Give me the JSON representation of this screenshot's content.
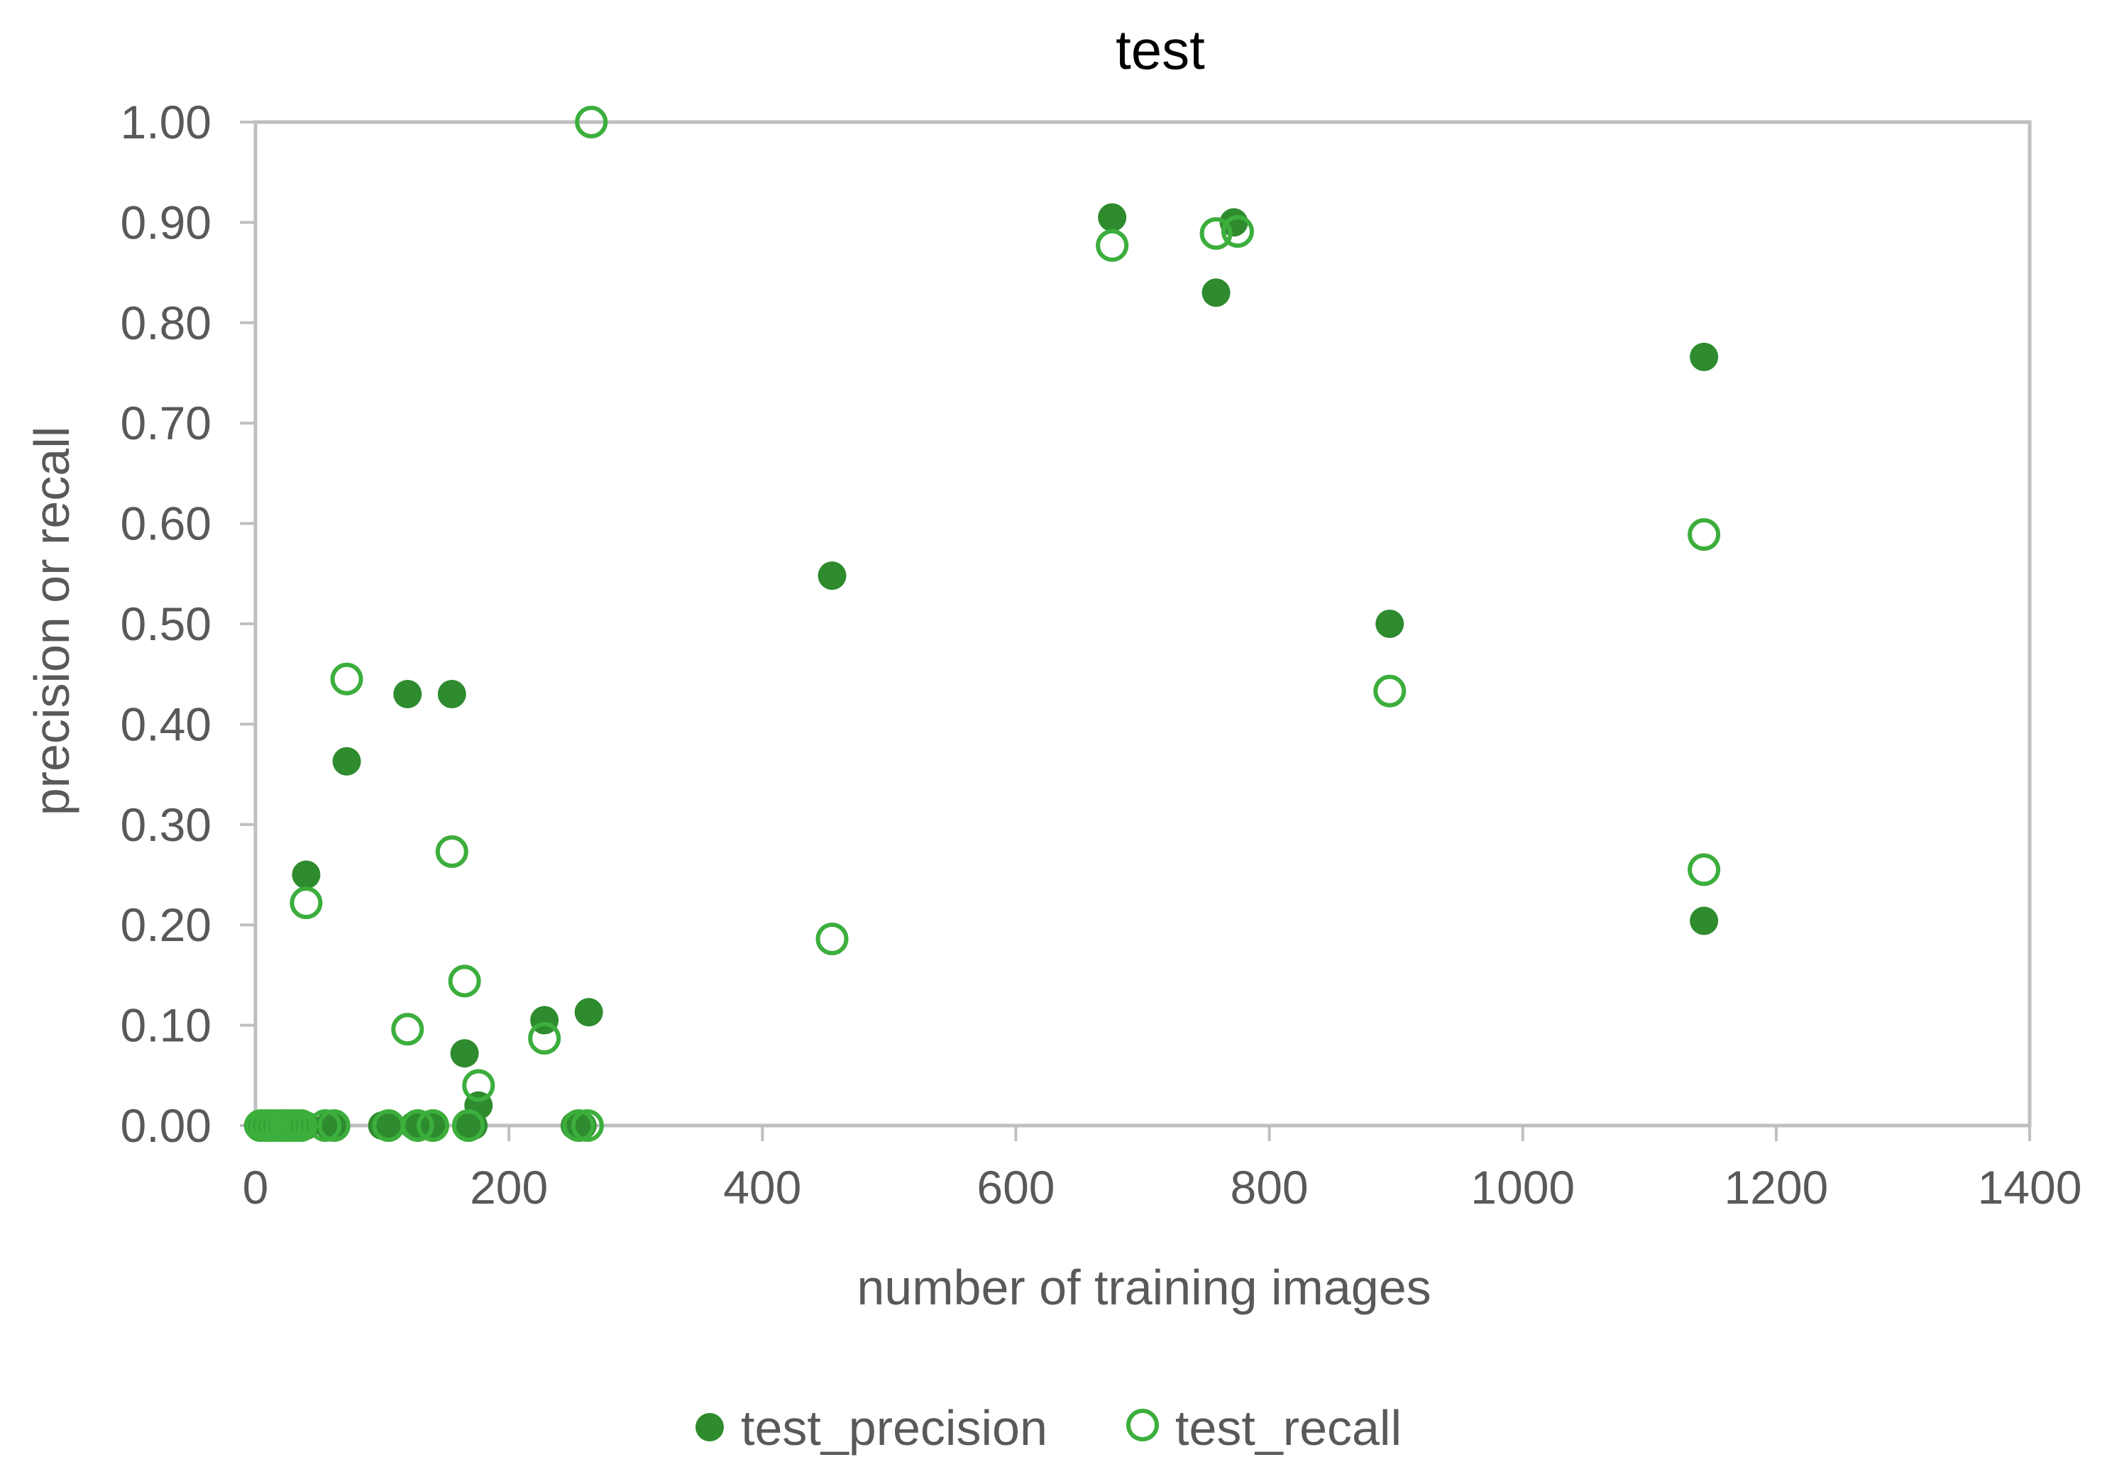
{
  "chart_data": {
    "type": "scatter",
    "title": "test",
    "xlabel": "number of training images",
    "ylabel": "precision or  recall",
    "xlim": [
      0,
      1400
    ],
    "ylim": [
      0,
      1.0
    ],
    "xticks": [
      "0",
      "200",
      "400",
      "600",
      "800",
      "1000",
      "1200",
      "1400"
    ],
    "yticks": [
      "0.00",
      "0.10",
      "0.20",
      "0.30",
      "0.40",
      "0.50",
      "0.60",
      "0.70",
      "0.80",
      "0.90",
      "1.00"
    ],
    "grid": false,
    "legend_position": "bottom",
    "series": [
      {
        "name": "test_precision",
        "marker": "filled-circle",
        "color": "#2e8b2e",
        "points": [
          [
            2,
            0
          ],
          [
            6,
            0
          ],
          [
            10,
            0
          ],
          [
            14,
            0
          ],
          [
            18,
            0
          ],
          [
            22,
            0
          ],
          [
            26,
            0
          ],
          [
            30,
            0
          ],
          [
            36,
            0
          ],
          [
            40,
            0
          ],
          [
            40,
            0.25
          ],
          [
            58,
            0
          ],
          [
            62,
            0
          ],
          [
            72,
            0.363
          ],
          [
            100,
            0
          ],
          [
            105,
            0
          ],
          [
            120,
            0.43
          ],
          [
            125,
            0
          ],
          [
            135,
            0
          ],
          [
            140,
            0
          ],
          [
            155,
            0.43
          ],
          [
            165,
            0.072
          ],
          [
            168,
            0
          ],
          [
            172,
            0
          ],
          [
            176,
            0.02
          ],
          [
            228,
            0.105
          ],
          [
            252,
            0
          ],
          [
            258,
            0
          ],
          [
            263,
            0.113
          ],
          [
            455,
            0.548
          ],
          [
            676,
            0.905
          ],
          [
            758,
            0.83
          ],
          [
            772,
            0.9
          ],
          [
            895,
            0.5
          ],
          [
            1143,
            0.766
          ],
          [
            1143,
            0.204
          ]
        ]
      },
      {
        "name": "test_recall",
        "marker": "open-circle",
        "color": "#3cae3c",
        "points": [
          [
            4,
            0
          ],
          [
            8,
            0
          ],
          [
            12,
            0
          ],
          [
            16,
            0
          ],
          [
            20,
            0
          ],
          [
            24,
            0
          ],
          [
            28,
            0
          ],
          [
            32,
            0
          ],
          [
            36,
            0
          ],
          [
            40,
            0.222
          ],
          [
            55,
            0
          ],
          [
            62,
            0
          ],
          [
            72,
            0.445
          ],
          [
            105,
            0
          ],
          [
            120,
            0.096
          ],
          [
            128,
            0
          ],
          [
            140,
            0
          ],
          [
            155,
            0.273
          ],
          [
            165,
            0.144
          ],
          [
            168,
            0
          ],
          [
            176,
            0.04
          ],
          [
            228,
            0.087
          ],
          [
            255,
            0
          ],
          [
            262,
            0
          ],
          [
            265,
            1.0
          ],
          [
            455,
            0.186
          ],
          [
            676,
            0.877
          ],
          [
            758,
            0.889
          ],
          [
            775,
            0.891
          ],
          [
            895,
            0.433
          ],
          [
            1143,
            0.589
          ],
          [
            1143,
            0.255
          ]
        ]
      }
    ]
  }
}
